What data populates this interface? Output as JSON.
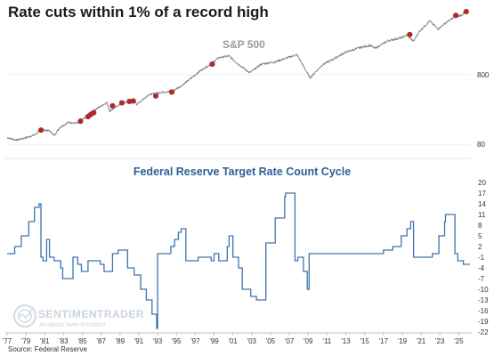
{
  "title": "Rate cuts within 1% of a record high",
  "source": "Source: Federal Reserve",
  "watermark": {
    "name": "SENTIMENTRADER",
    "tagline": "Analysis over Emotion"
  },
  "colors": {
    "sp_line": "#8a8a8a",
    "markers": "#b02a2a",
    "rate_line": "#3f74ad",
    "lower_title": "#2e5e9a"
  },
  "chart_data": [
    {
      "type": "line",
      "series_label": "S&P 500",
      "y_scale": "log",
      "y_ticks": [
        80,
        800
      ],
      "ylim": [
        60,
        7000
      ],
      "x_range": [
        1977.0,
        2026.2
      ],
      "series": [
        {
          "name": "S&P 500",
          "x": [
            1977.0,
            1978.0,
            1979.0,
            1980.0,
            1980.5,
            1981.5,
            1982.0,
            1982.6,
            1983.5,
            1984.5,
            1985.0,
            1986.0,
            1987.6,
            1987.9,
            1989.0,
            1990.5,
            1990.8,
            1992.0,
            1993.5,
            1994.5,
            1995.5,
            1996.5,
            1997.5,
            1998.5,
            1999.5,
            2000.6,
            2001.5,
            2002.8,
            2004.0,
            2005.5,
            2007.8,
            2009.2,
            2010.5,
            2011.5,
            2013.0,
            2014.5,
            2015.6,
            2016.1,
            2017.5,
            2018.9,
            2019.5,
            2020.2,
            2020.8,
            2021.9,
            2022.8,
            2023.5,
            2024.5,
            2025.3,
            2025.9
          ],
          "values": [
            100,
            92,
            100,
            110,
            130,
            125,
            108,
            140,
            165,
            162,
            180,
            235,
            320,
            240,
            300,
            350,
            300,
            410,
            450,
            460,
            550,
            700,
            900,
            1100,
            1400,
            1480,
            1150,
            850,
            1130,
            1220,
            1550,
            720,
            1100,
            1300,
            1680,
            1950,
            2100,
            1900,
            2450,
            2700,
            2950,
            2400,
            3300,
            4700,
            3600,
            4300,
            5300,
            5700,
            6600
          ]
        }
      ],
      "cut_markers": {
        "x": [
          1980.6,
          1984.8,
          1985.6,
          1985.9,
          1986.2,
          1988.2,
          1989.2,
          1990.0,
          1990.4,
          1992.8,
          1994.5,
          1998.8,
          2019.8,
          2024.7,
          2025.8
        ],
        "values": [
          128,
          172,
          200,
          215,
          228,
          285,
          315,
          330,
          335,
          395,
          450,
          1130,
          3000,
          5650,
          6400
        ]
      }
    },
    {
      "type": "line",
      "title": "Federal Reserve Target Rate Count Cycle",
      "y_ticks": [
        20,
        17,
        14,
        11,
        8,
        5,
        2,
        -1,
        -4,
        -7,
        -10,
        -13,
        -16,
        -19,
        -22
      ],
      "ylim": [
        -22,
        20
      ],
      "x_ticks": [
        "'77",
        "'79",
        "'81",
        "'83",
        "'85",
        "'87",
        "'89",
        "'91",
        "'93",
        "'95",
        "'97",
        "'99",
        "'01",
        "'03",
        "'05",
        "'07",
        "'09",
        "'11",
        "'13",
        "'15",
        "'17",
        "'19",
        "'21",
        "'23",
        "'25"
      ],
      "x_range": [
        1977.0,
        2026.2
      ],
      "series": [
        {
          "name": "Target Rate Count Cycle",
          "x": [
            1977.0,
            1977.8,
            1978.5,
            1979.3,
            1979.9,
            1980.4,
            1980.6,
            1980.8,
            1981.2,
            1981.5,
            1982.0,
            1982.7,
            1982.9,
            1984.0,
            1984.5,
            1984.9,
            1985.6,
            1986.5,
            1986.9,
            1987.3,
            1988.2,
            1988.8,
            1989.2,
            1989.8,
            1990.5,
            1991.2,
            1991.8,
            1992.4,
            1992.9,
            1993.0,
            1994.0,
            1994.4,
            1994.8,
            1995.2,
            1995.5,
            1996.0,
            1997.3,
            1998.7,
            1999.0,
            1999.5,
            2000.4,
            2000.6,
            2001.0,
            2001.6,
            2002.0,
            2002.9,
            2003.5,
            2004.5,
            2005.5,
            2006.5,
            2006.6,
            2007.6,
            2007.9,
            2008.5,
            2008.9,
            2009.1,
            2015.9,
            2017.0,
            2018.0,
            2018.9,
            2019.5,
            2019.9,
            2020.2,
            2022.2,
            2022.9,
            2023.5,
            2023.6,
            2024.6,
            2024.9,
            2025.5,
            2025.9
          ],
          "values": [
            0,
            2,
            5,
            9,
            13,
            14,
            -1,
            -2,
            4,
            -1,
            -2,
            -4,
            -7,
            -1,
            -3,
            -5,
            -2,
            -2,
            -3,
            -5,
            0,
            1,
            1,
            -4,
            -6,
            -10,
            -13,
            -17,
            -21,
            0,
            0,
            2,
            4,
            6,
            7,
            -2,
            -1,
            -2,
            0,
            -2,
            2,
            5,
            -1,
            -4,
            -10,
            -12,
            -13,
            3,
            10,
            16,
            17,
            -2,
            -1,
            -5,
            -10,
            0,
            0,
            1,
            2,
            5,
            7,
            9,
            -1,
            0,
            5,
            9,
            11,
            0,
            -2,
            -3,
            -3
          ]
        }
      ]
    }
  ]
}
